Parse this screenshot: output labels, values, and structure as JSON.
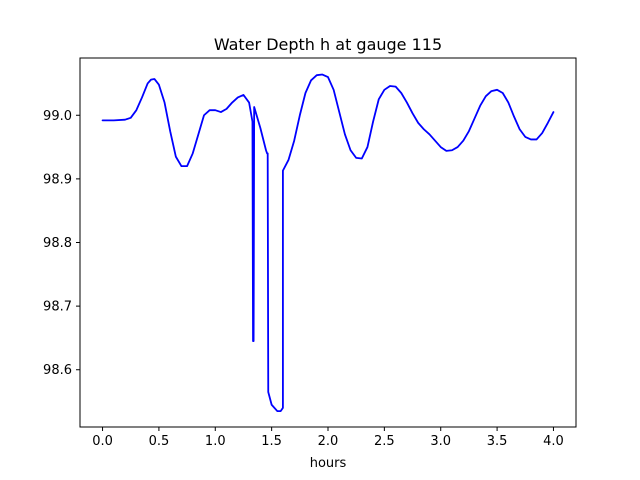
{
  "chart_data": {
    "type": "line",
    "title": "Water Depth h at gauge 115",
    "xlabel": "hours",
    "ylabel": "",
    "xlim": [
      -0.2,
      4.2
    ],
    "ylim": [
      98.51,
      99.09
    ],
    "xticks": [
      0.0,
      0.5,
      1.0,
      1.5,
      2.0,
      2.5,
      3.0,
      3.5,
      4.0
    ],
    "xtick_labels": [
      "0.0",
      "0.5",
      "1.0",
      "1.5",
      "2.0",
      "2.5",
      "3.0",
      "3.5",
      "4.0"
    ],
    "yticks": [
      98.6,
      98.7,
      98.8,
      98.9,
      99.0
    ],
    "ytick_labels": [
      "98.6",
      "98.7",
      "98.8",
      "98.9",
      "99.0"
    ],
    "grid": false,
    "series": [
      {
        "color": "#0000ff",
        "x": [
          0.0,
          0.1,
          0.2,
          0.25,
          0.3,
          0.35,
          0.4,
          0.43,
          0.46,
          0.5,
          0.55,
          0.6,
          0.65,
          0.7,
          0.75,
          0.8,
          0.85,
          0.9,
          0.95,
          1.0,
          1.05,
          1.1,
          1.15,
          1.2,
          1.25,
          1.3,
          1.33,
          1.335,
          1.34,
          1.345,
          1.35,
          1.4,
          1.45,
          1.46,
          1.465,
          1.47,
          1.5,
          1.55,
          1.58,
          1.6,
          1.6,
          1.65,
          1.7,
          1.75,
          1.8,
          1.85,
          1.9,
          1.95,
          2.0,
          2.05,
          2.1,
          2.15,
          2.2,
          2.25,
          2.3,
          2.35,
          2.4,
          2.45,
          2.5,
          2.55,
          2.6,
          2.65,
          2.7,
          2.75,
          2.8,
          2.85,
          2.9,
          2.95,
          3.0,
          3.05,
          3.1,
          3.15,
          3.2,
          3.25,
          3.3,
          3.35,
          3.4,
          3.45,
          3.5,
          3.55,
          3.6,
          3.65,
          3.7,
          3.75,
          3.8,
          3.85,
          3.9,
          3.95,
          4.0
        ],
        "y": [
          98.992,
          98.992,
          98.993,
          98.996,
          99.008,
          99.028,
          99.05,
          99.056,
          99.057,
          99.048,
          99.02,
          98.975,
          98.935,
          98.92,
          98.92,
          98.94,
          98.97,
          99.0,
          99.008,
          99.008,
          99.005,
          99.01,
          99.02,
          99.028,
          99.032,
          99.02,
          98.99,
          98.645,
          98.645,
          99.013,
          99.01,
          98.98,
          98.945,
          98.94,
          98.94,
          98.565,
          98.545,
          98.535,
          98.535,
          98.54,
          98.913,
          98.93,
          98.96,
          99.0,
          99.035,
          99.055,
          99.063,
          99.064,
          99.06,
          99.04,
          99.005,
          98.97,
          98.945,
          98.933,
          98.932,
          98.95,
          98.99,
          99.025,
          99.04,
          99.046,
          99.045,
          99.035,
          99.02,
          99.003,
          98.988,
          98.978,
          98.97,
          98.96,
          98.95,
          98.944,
          98.945,
          98.95,
          98.96,
          98.975,
          98.995,
          99.015,
          99.03,
          99.038,
          99.04,
          99.035,
          99.02,
          98.998,
          98.978,
          98.966,
          98.962,
          98.962,
          98.972,
          98.988,
          99.005
        ]
      }
    ]
  }
}
